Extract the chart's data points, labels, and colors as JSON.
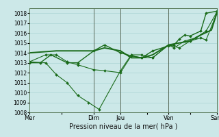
{
  "background_color": "#cce8e8",
  "plot_bg_color": "#cce8e8",
  "grid_color": "#b0d8d8",
  "line_color": "#1a6b1a",
  "xlabel": "Pression niveau de la mer( hPa )",
  "ylim": [
    1008,
    1018.5
  ],
  "yticks": [
    1008,
    1009,
    1010,
    1011,
    1012,
    1013,
    1014,
    1015,
    1016,
    1017,
    1018
  ],
  "xtick_labels": [
    "Mer",
    "",
    "Dim",
    "Jeu",
    "",
    "Ven",
    "",
    "Sam"
  ],
  "xtick_positions": [
    0,
    6,
    12,
    17,
    22,
    26,
    30,
    35
  ],
  "total_points": 36,
  "series": [
    {
      "x": [
        0,
        2,
        4,
        7,
        9,
        12,
        14,
        17,
        19,
        21,
        23,
        26,
        27,
        28,
        29,
        30,
        32,
        33,
        35
      ],
      "y": [
        1013.0,
        1013.0,
        1013.8,
        1013.0,
        1013.0,
        1014.2,
        1014.8,
        1014.0,
        1013.7,
        1013.5,
        1014.2,
        1014.7,
        1014.8,
        1015.4,
        1015.8,
        1015.7,
        1016.2,
        1018.0,
        1018.2
      ],
      "marker": "D",
      "markersize": 2.0,
      "linewidth": 1.0
    },
    {
      "x": [
        0,
        3,
        5,
        7,
        9,
        12,
        14,
        17,
        19,
        21,
        23,
        26,
        28,
        30,
        32,
        33,
        35
      ],
      "y": [
        1013.1,
        1013.8,
        1013.8,
        1013.1,
        1012.8,
        1012.3,
        1012.2,
        1012.0,
        1013.7,
        1013.5,
        1013.5,
        1014.8,
        1014.5,
        1015.2,
        1015.5,
        1015.3,
        1018.0
      ],
      "marker": "D",
      "markersize": 2.0,
      "linewidth": 0.8
    },
    {
      "x": [
        0,
        3,
        5,
        7,
        9,
        11,
        13,
        17,
        19,
        21,
        23,
        26,
        27,
        29,
        31,
        33,
        35
      ],
      "y": [
        1013.1,
        1013.0,
        1011.8,
        1011.0,
        1009.7,
        1009.0,
        1008.3,
        1012.2,
        1013.8,
        1013.8,
        1013.5,
        1014.8,
        1014.5,
        1015.2,
        1015.5,
        1016.2,
        1018.1
      ],
      "marker": "D",
      "markersize": 2.0,
      "linewidth": 0.8
    },
    {
      "x": [
        0,
        5,
        9,
        12,
        14,
        17,
        19,
        21,
        23,
        26,
        28,
        30,
        32,
        34,
        35
      ],
      "y": [
        1014.0,
        1014.2,
        1014.2,
        1014.2,
        1014.5,
        1014.2,
        1013.5,
        1013.5,
        1013.8,
        1014.8,
        1015.0,
        1015.2,
        1015.8,
        1016.3,
        1018.0
      ],
      "marker": null,
      "markersize": 0,
      "linewidth": 1.4
    }
  ],
  "vline_positions": [
    12,
    17,
    26,
    35
  ],
  "vline_color": "#556655",
  "vline_lw": 0.7,
  "xlabel_fontsize": 7,
  "ytick_fontsize": 5.5,
  "xtick_fontsize": 6
}
